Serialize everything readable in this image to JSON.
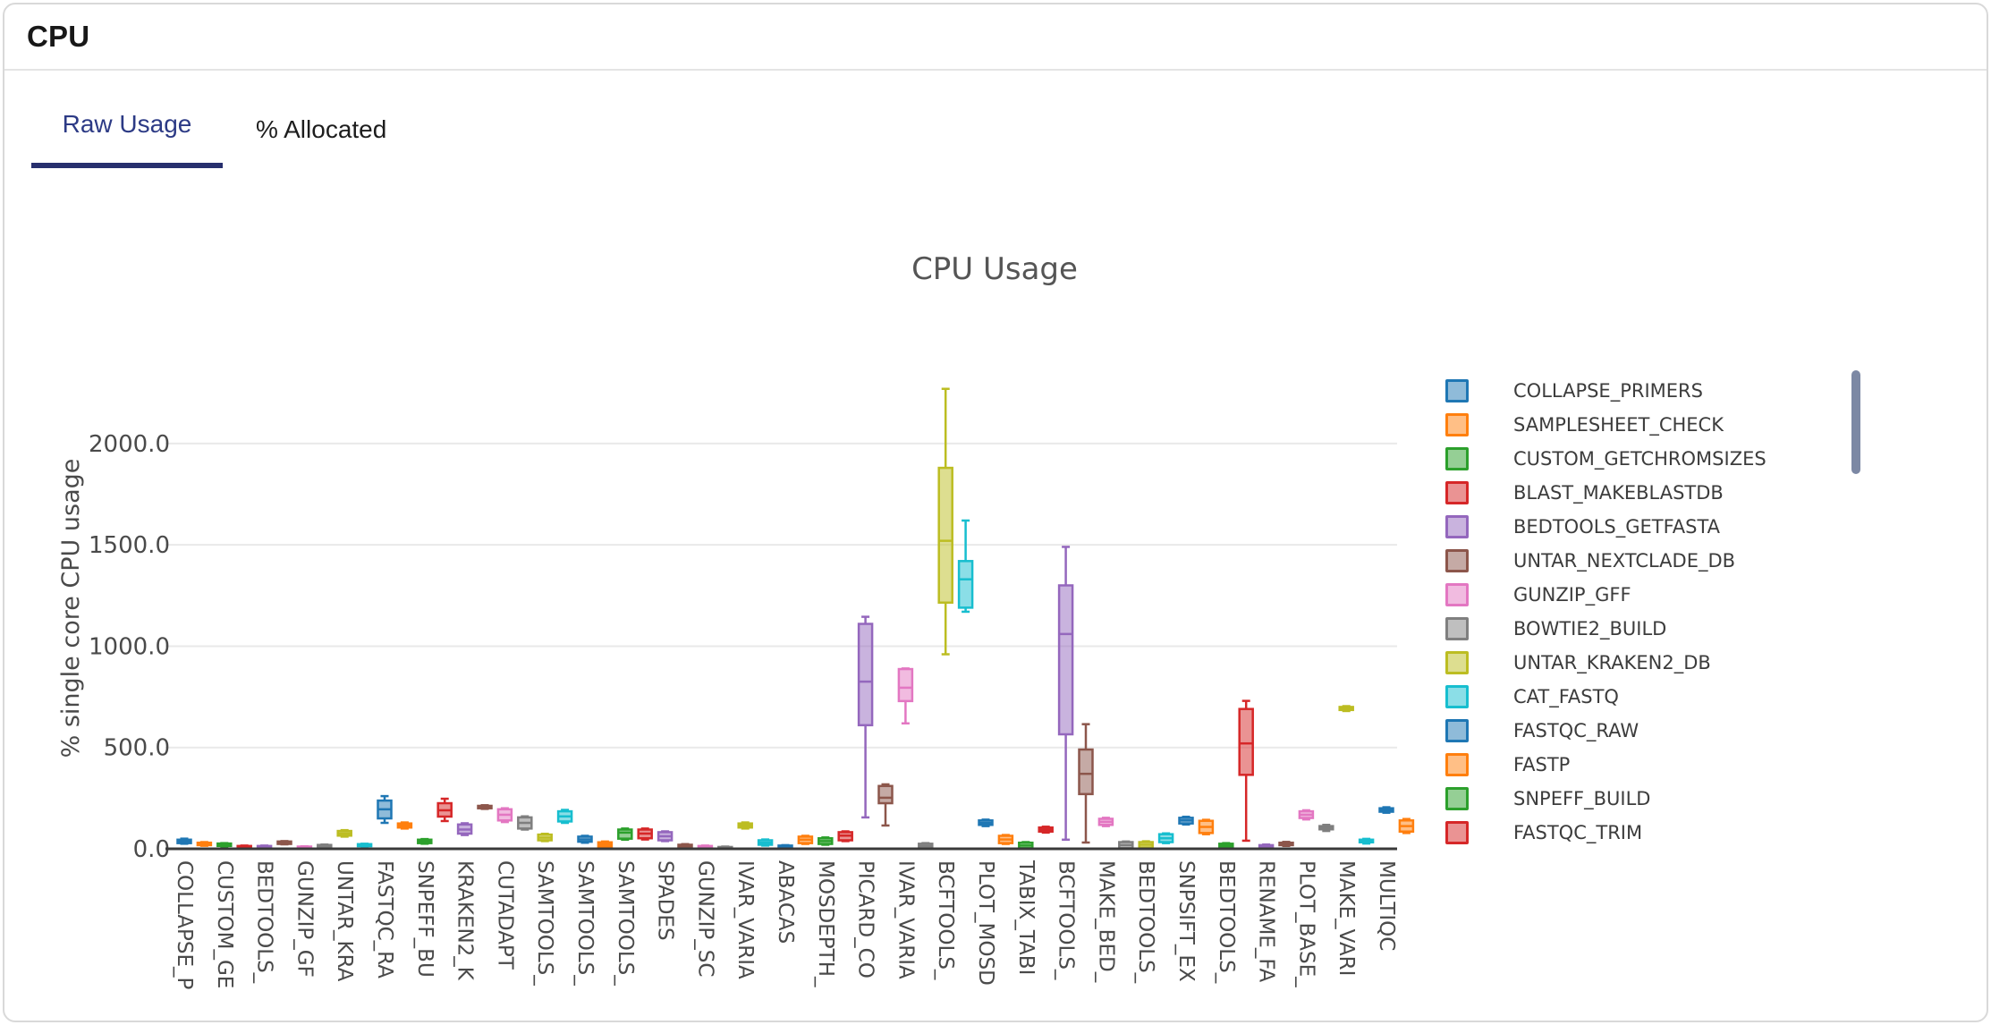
{
  "card": {
    "title": "CPU"
  },
  "tabs": {
    "items": [
      {
        "label": "Raw Usage",
        "active": true
      },
      {
        "label": "% Allocated",
        "active": false
      }
    ]
  },
  "colors": {
    "active_tab": "#2c3a85",
    "tab_underline": "#272f6d",
    "axis_line": "#3a3a3a",
    "gridline": "#e9e9e9",
    "chart_text": "#4a4a4a",
    "scrollbar": "#7c88a4"
  },
  "chart_data": {
    "type": "box",
    "title": "CPU Usage",
    "ylabel": "% single core CPU usage",
    "xlabel": "",
    "ylim": [
      0,
      2330
    ],
    "grid": true,
    "legend_position": "right",
    "yticks": [
      {
        "value": 0,
        "label": "0.0"
      },
      {
        "value": 500,
        "label": "500.0"
      },
      {
        "value": 1000,
        "label": "1000.0"
      },
      {
        "value": 1500,
        "label": "1500.0"
      },
      {
        "value": 2000,
        "label": "2000.0"
      }
    ],
    "palette": [
      "#1f77b4",
      "#ff7f0e",
      "#2ca02c",
      "#d62728",
      "#9467bd",
      "#8c564b",
      "#e377c2",
      "#7f7f7f",
      "#bcbd22",
      "#17becf"
    ],
    "x_tick_every": 2,
    "x_tick_labels": [
      "COLLAPSE_P",
      "CUSTOM_GE",
      "BEDTOOLS_",
      "GUNZIP_GF",
      "UNTAR_KRA",
      "FASTQC_RA",
      "SNPEFF_BU",
      "KRAKEN2_K",
      "CUTADAPT",
      "SAMTOOLS_",
      "SAMTOOLS_",
      "SAMTOOLS_",
      "SPADES",
      "GUNZIP_SC",
      "IVAR_VARIA",
      "ABACAS",
      "MOSDEPTH_",
      "PICARD_CO",
      "IVAR_VARIA",
      "BCFTOOLS_",
      "PLOT_MOSD",
      "TABIX_TABI",
      "BCFTOOLS_",
      "MAKE_BED_",
      "BEDTOOLS_",
      "SNPSIFT_EX",
      "BEDTOOLS_",
      "RENAME_FA",
      "PLOT_BASE_",
      "MAKE_VARI",
      "MULTIQC"
    ],
    "traces": [
      {
        "lo": 25,
        "q1": 28,
        "med": 36,
        "q3": 45,
        "hi": 50
      },
      {
        "lo": 15,
        "q1": 18,
        "med": 24,
        "q3": 30,
        "hi": 33
      },
      {
        "lo": 12,
        "q1": 14,
        "med": 20,
        "q3": 26,
        "hi": 28
      },
      {
        "lo": 4,
        "q1": 5,
        "med": 9,
        "q3": 14,
        "hi": 16
      },
      {
        "lo": 5,
        "q1": 6,
        "med": 10,
        "q3": 14,
        "hi": 16
      },
      {
        "lo": 22,
        "q1": 24,
        "med": 30,
        "q3": 36,
        "hi": 38
      },
      {
        "lo": 3,
        "q1": 4,
        "med": 7,
        "q3": 11,
        "hi": 12
      },
      {
        "lo": 8,
        "q1": 9,
        "med": 14,
        "q3": 19,
        "hi": 21
      },
      {
        "lo": 60,
        "q1": 65,
        "med": 76,
        "q3": 88,
        "hi": 92
      },
      {
        "lo": 11,
        "q1": 13,
        "med": 18,
        "q3": 23,
        "hi": 25
      },
      {
        "lo": 128,
        "q1": 150,
        "med": 195,
        "q3": 238,
        "hi": 260
      },
      {
        "lo": 100,
        "q1": 105,
        "med": 115,
        "q3": 125,
        "hi": 130
      },
      {
        "lo": 25,
        "q1": 28,
        "med": 36,
        "q3": 45,
        "hi": 48
      },
      {
        "lo": 137,
        "q1": 159,
        "med": 190,
        "q3": 225,
        "hi": 247
      },
      {
        "lo": 68,
        "q1": 75,
        "med": 95,
        "q3": 120,
        "hi": 126
      },
      {
        "lo": 197,
        "q1": 200,
        "med": 206,
        "q3": 212,
        "hi": 215
      },
      {
        "lo": 132,
        "q1": 140,
        "med": 168,
        "q3": 195,
        "hi": 200
      },
      {
        "lo": 95,
        "q1": 100,
        "med": 128,
        "q3": 155,
        "hi": 160
      },
      {
        "lo": 38,
        "q1": 42,
        "med": 55,
        "q3": 70,
        "hi": 74
      },
      {
        "lo": 128,
        "q1": 135,
        "med": 160,
        "q3": 185,
        "hi": 192
      },
      {
        "lo": 30,
        "q1": 35,
        "med": 46,
        "q3": 60,
        "hi": 64
      },
      {
        "lo": 9,
        "q1": 12,
        "med": 22,
        "q3": 32,
        "hi": 36
      },
      {
        "lo": 45,
        "q1": 50,
        "med": 80,
        "q3": 95,
        "hi": 100
      },
      {
        "lo": 46,
        "q1": 52,
        "med": 75,
        "q3": 95,
        "hi": 100
      },
      {
        "lo": 38,
        "q1": 42,
        "med": 62,
        "q3": 82,
        "hi": 86
      },
      {
        "lo": 1,
        "q1": 2,
        "med": 10,
        "q3": 20,
        "hi": 23
      },
      {
        "lo": 1,
        "q1": 2,
        "med": 8,
        "q3": 14,
        "hi": 16
      },
      {
        "lo": 0,
        "q1": 1,
        "med": 5,
        "q3": 9,
        "hi": 11
      },
      {
        "lo": 100,
        "q1": 105,
        "med": 115,
        "q3": 125,
        "hi": 130
      },
      {
        "lo": 16,
        "q1": 20,
        "med": 30,
        "q3": 42,
        "hi": 46
      },
      {
        "lo": 1,
        "q1": 2,
        "med": 8,
        "q3": 16,
        "hi": 18
      },
      {
        "lo": 24,
        "q1": 28,
        "med": 45,
        "q3": 60,
        "hi": 64
      },
      {
        "lo": 20,
        "q1": 24,
        "med": 38,
        "q3": 52,
        "hi": 56
      },
      {
        "lo": 38,
        "q1": 42,
        "med": 65,
        "q3": 82,
        "hi": 86
      },
      {
        "lo": 155,
        "q1": 610,
        "med": 825,
        "q3": 1110,
        "hi": 1145
      },
      {
        "lo": 115,
        "q1": 225,
        "med": 252,
        "q3": 310,
        "hi": 318
      },
      {
        "lo": 619,
        "q1": 729,
        "med": 795,
        "q3": 887,
        "hi": 890
      },
      {
        "lo": 1,
        "q1": 3,
        "med": 14,
        "q3": 25,
        "hi": 28
      },
      {
        "lo": 960,
        "q1": 1215,
        "med": 1520,
        "q3": 1880,
        "hi": 2270
      },
      {
        "lo": 1170,
        "q1": 1190,
        "med": 1330,
        "q3": 1420,
        "hi": 1620
      },
      {
        "lo": 112,
        "q1": 118,
        "med": 128,
        "q3": 140,
        "hi": 144
      },
      {
        "lo": 24,
        "q1": 28,
        "med": 46,
        "q3": 64,
        "hi": 68
      },
      {
        "lo": 1,
        "q1": 3,
        "med": 16,
        "q3": 30,
        "hi": 33
      },
      {
        "lo": 80,
        "q1": 85,
        "med": 95,
        "q3": 105,
        "hi": 109
      },
      {
        "lo": 45,
        "q1": 565,
        "med": 1060,
        "q3": 1300,
        "hi": 1490
      },
      {
        "lo": 31,
        "q1": 270,
        "med": 370,
        "q3": 490,
        "hi": 615
      },
      {
        "lo": 112,
        "q1": 118,
        "med": 133,
        "q3": 148,
        "hi": 153
      },
      {
        "lo": 1,
        "q1": 3,
        "med": 18,
        "q3": 33,
        "hi": 36
      },
      {
        "lo": 3,
        "q1": 6,
        "med": 20,
        "q3": 33,
        "hi": 37
      },
      {
        "lo": 28,
        "q1": 33,
        "med": 52,
        "q3": 72,
        "hi": 76
      },
      {
        "lo": 120,
        "q1": 125,
        "med": 140,
        "q3": 153,
        "hi": 158
      },
      {
        "lo": 72,
        "q1": 78,
        "med": 108,
        "q3": 138,
        "hi": 143
      },
      {
        "lo": 8,
        "q1": 12,
        "med": 18,
        "q3": 25,
        "hi": 28
      },
      {
        "lo": 40,
        "q1": 365,
        "med": 520,
        "q3": 690,
        "hi": 730
      },
      {
        "lo": 5,
        "q1": 8,
        "med": 13,
        "q3": 18,
        "hi": 21
      },
      {
        "lo": 14,
        "q1": 18,
        "med": 24,
        "q3": 30,
        "hi": 34
      },
      {
        "lo": 145,
        "q1": 152,
        "med": 168,
        "q3": 185,
        "hi": 190
      },
      {
        "lo": 88,
        "q1": 96,
        "med": 104,
        "q3": 112,
        "hi": 118
      },
      {
        "lo": 680,
        "q1": 685,
        "med": 692,
        "q3": 700,
        "hi": 704
      },
      {
        "lo": 26,
        "q1": 32,
        "med": 38,
        "q3": 45,
        "hi": 49
      },
      {
        "lo": 178,
        "q1": 183,
        "med": 192,
        "q3": 200,
        "hi": 205
      },
      {
        "lo": 78,
        "q1": 85,
        "med": 112,
        "q3": 140,
        "hi": 147
      }
    ]
  },
  "legend": {
    "items": [
      {
        "label": "COLLAPSE_PRIMERS",
        "color": "#1f77b4"
      },
      {
        "label": "SAMPLESHEET_CHECK",
        "color": "#ff7f0e"
      },
      {
        "label": "CUSTOM_GETCHROMSIZES",
        "color": "#2ca02c"
      },
      {
        "label": "BLAST_MAKEBLASTDB",
        "color": "#d62728"
      },
      {
        "label": "BEDTOOLS_GETFASTA",
        "color": "#9467bd"
      },
      {
        "label": "UNTAR_NEXTCLADE_DB",
        "color": "#8c564b"
      },
      {
        "label": "GUNZIP_GFF",
        "color": "#e377c2"
      },
      {
        "label": "BOWTIE2_BUILD",
        "color": "#7f7f7f"
      },
      {
        "label": "UNTAR_KRAKEN2_DB",
        "color": "#bcbd22"
      },
      {
        "label": "CAT_FASTQ",
        "color": "#17becf"
      },
      {
        "label": "FASTQC_RAW",
        "color": "#1f77b4"
      },
      {
        "label": "FASTP",
        "color": "#ff7f0e"
      },
      {
        "label": "SNPEFF_BUILD",
        "color": "#2ca02c"
      },
      {
        "label": "FASTQC_TRIM",
        "color": "#d62728"
      }
    ]
  }
}
